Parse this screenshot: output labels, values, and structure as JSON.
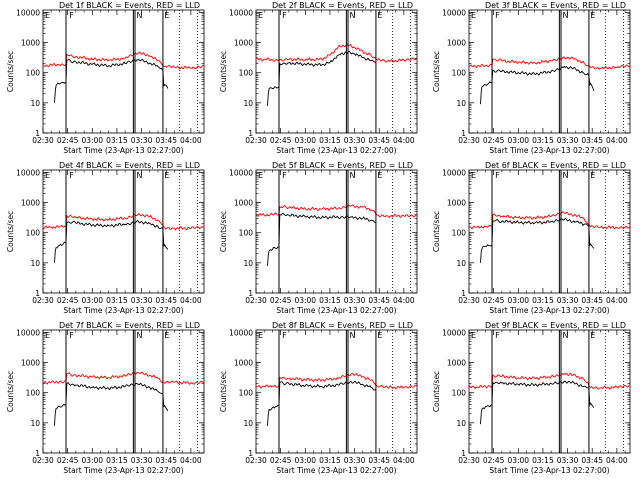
{
  "page": {
    "colors": {
      "events": "#000000",
      "lld": "#ff0000",
      "axes": "#000000",
      "background": "#ffffff"
    }
  },
  "axes_common": {
    "ylabel": "Counts/sec",
    "xlabel": "Start Time (23-Apr-13 02:27:00)",
    "x_tick_labels": [
      "02:30",
      "02:45",
      "03:00",
      "03:15",
      "03:30",
      "03:45",
      "04:00"
    ],
    "x_tick_minutes": [
      30,
      45,
      60,
      75,
      90,
      105,
      120
    ],
    "y_tick_labels": [
      "1",
      "10",
      "100",
      "1000",
      "10000"
    ],
    "y_tick_values": [
      1,
      10,
      100,
      1000,
      10000
    ],
    "xlim_minutes": [
      30,
      128
    ],
    "ylim": [
      1,
      12000
    ],
    "yscale": "log",
    "grid": false,
    "legend": "none"
  },
  "chart_data": [
    {
      "type": "line",
      "title": "Det 1f BLACK = Events, RED = LLD",
      "markers": {
        "solid": [
          44,
          85,
          86,
          103
        ],
        "dotted": [
          113,
          124
        ],
        "F": 45,
        "N": 86,
        "E": 103
      },
      "series": [
        {
          "color": "#000000",
          "x": [
            37,
            37.5,
            38,
            39,
            40,
            41,
            42,
            43,
            44,
            44.5,
            50,
            60,
            70,
            80,
            88,
            95,
            100,
            102,
            103,
            103.5,
            104,
            105,
            106
          ],
          "y": [
            10,
            25,
            38,
            45,
            42,
            46,
            48,
            45,
            50,
            260,
            230,
            190,
            170,
            200,
            270,
            210,
            160,
            140,
            120,
            35,
            40,
            38,
            30
          ]
        },
        {
          "color": "#ff0000",
          "x": [
            30,
            35,
            40,
            44,
            44.5,
            50,
            60,
            70,
            80,
            88,
            95,
            100,
            103,
            104,
            110,
            120,
            128
          ],
          "y": [
            170,
            180,
            185,
            195,
            400,
            340,
            280,
            260,
            300,
            450,
            360,
            250,
            170,
            160,
            150,
            145,
            160
          ]
        }
      ]
    },
    {
      "type": "line",
      "title": "Det 2f BLACK = Events, RED = LLD",
      "markers": {
        "solid": [
          44,
          85,
          86,
          103
        ],
        "dotted": [
          113,
          124
        ],
        "F": 45,
        "N": 86,
        "E": 103
      },
      "series": [
        {
          "color": "#000000",
          "x": [
            37,
            37.5,
            38,
            39,
            40,
            42,
            44,
            44.5,
            50,
            60,
            70,
            75,
            80,
            85,
            90,
            95,
            100,
            103
          ],
          "y": [
            8,
            20,
            30,
            32,
            30,
            34,
            35,
            200,
            210,
            190,
            180,
            220,
            380,
            480,
            420,
            320,
            250,
            210
          ]
        },
        {
          "color": "#ff0000",
          "x": [
            30,
            35,
            40,
            44,
            44.5,
            50,
            60,
            70,
            75,
            80,
            85,
            90,
            95,
            100,
            103,
            104,
            110,
            120,
            128
          ],
          "y": [
            280,
            280,
            270,
            260,
            270,
            280,
            270,
            280,
            380,
            700,
            850,
            700,
            500,
            370,
            290,
            260,
            240,
            260,
            280
          ]
        }
      ]
    },
    {
      "type": "line",
      "title": "Det 3f BLACK = Events, RED = LLD",
      "markers": {
        "solid": [
          44,
          85,
          86,
          103
        ],
        "dotted": [
          113,
          124
        ],
        "F": 45,
        "N": 86,
        "E": 103
      },
      "series": [
        {
          "color": "#000000",
          "x": [
            37,
            37.5,
            38,
            40,
            42,
            44,
            44.5,
            50,
            60,
            70,
            80,
            88,
            95,
            100,
            103,
            103.5,
            104,
            105,
            106
          ],
          "y": [
            9,
            25,
            35,
            40,
            45,
            50,
            120,
            110,
            100,
            90,
            110,
            160,
            130,
            95,
            80,
            40,
            45,
            35,
            25
          ]
        },
        {
          "color": "#ff0000",
          "x": [
            30,
            35,
            40,
            44,
            44.5,
            50,
            60,
            70,
            80,
            88,
            95,
            100,
            103,
            104,
            110,
            120,
            128
          ],
          "y": [
            160,
            165,
            170,
            175,
            280,
            250,
            220,
            210,
            250,
            330,
            280,
            210,
            170,
            150,
            140,
            150,
            165
          ]
        }
      ]
    },
    {
      "type": "line",
      "title": "Det 4f BLACK = Events, RED = LLD",
      "markers": {
        "solid": [
          44,
          85,
          86,
          103
        ],
        "dotted": [
          113,
          124
        ],
        "F": 45,
        "N": 86,
        "E": 103
      },
      "series": [
        {
          "color": "#000000",
          "x": [
            37,
            37.5,
            38,
            40,
            42,
            44,
            44.5,
            50,
            60,
            70,
            80,
            88,
            95,
            100,
            103,
            103.5,
            104,
            105,
            106
          ],
          "y": [
            10,
            25,
            32,
            38,
            40,
            45,
            220,
            210,
            180,
            170,
            190,
            240,
            200,
            160,
            140,
            35,
            40,
            32,
            28
          ]
        },
        {
          "color": "#ff0000",
          "x": [
            30,
            35,
            40,
            44,
            44.5,
            50,
            60,
            70,
            80,
            88,
            95,
            100,
            103,
            104,
            110,
            120,
            128
          ],
          "y": [
            150,
            150,
            155,
            160,
            360,
            320,
            280,
            270,
            310,
            420,
            340,
            260,
            170,
            150,
            140,
            140,
            150
          ]
        }
      ]
    },
    {
      "type": "line",
      "title": "Det 5f BLACK = Events, RED = LLD",
      "markers": {
        "solid": [
          44,
          85,
          86,
          103
        ],
        "dotted": [
          113,
          124
        ],
        "F": 45,
        "N": 86,
        "E": 103
      },
      "series": [
        {
          "color": "#000000",
          "x": [
            37,
            37.5,
            38,
            40,
            42,
            44,
            44.5,
            50,
            60,
            70,
            80,
            88,
            95,
            100,
            103
          ],
          "y": [
            8,
            18,
            25,
            28,
            30,
            32,
            400,
            380,
            340,
            320,
            330,
            330,
            300,
            260,
            220
          ]
        },
        {
          "color": "#ff0000",
          "x": [
            30,
            35,
            40,
            44,
            44.5,
            50,
            60,
            70,
            80,
            88,
            95,
            100,
            103,
            104,
            110,
            120,
            128
          ],
          "y": [
            390,
            390,
            395,
            400,
            720,
            680,
            620,
            600,
            650,
            780,
            700,
            580,
            420,
            380,
            360,
            360,
            380
          ]
        }
      ]
    },
    {
      "type": "line",
      "title": "Det 6f BLACK = Events, RED = LLD",
      "markers": {
        "solid": [
          44,
          85,
          86,
          103
        ],
        "dotted": [
          113,
          124
        ],
        "F": 45,
        "N": 86,
        "E": 103
      },
      "series": [
        {
          "color": "#000000",
          "x": [
            37,
            37.5,
            38,
            40,
            42,
            44,
            44.5,
            50,
            60,
            70,
            80,
            88,
            95,
            100,
            103,
            103.5,
            104,
            105,
            106
          ],
          "y": [
            10,
            25,
            30,
            35,
            38,
            40,
            250,
            240,
            220,
            210,
            230,
            270,
            230,
            190,
            160,
            38,
            42,
            35,
            30
          ]
        },
        {
          "color": "#ff0000",
          "x": [
            30,
            35,
            40,
            44,
            44.5,
            50,
            60,
            70,
            80,
            88,
            95,
            100,
            103,
            104,
            110,
            120,
            128
          ],
          "y": [
            150,
            155,
            160,
            165,
            380,
            350,
            320,
            310,
            350,
            450,
            380,
            290,
            180,
            160,
            150,
            150,
            160
          ]
        }
      ]
    },
    {
      "type": "line",
      "title": "Det 7f BLACK = Events, RED = LLD",
      "markers": {
        "solid": [
          44,
          85,
          86,
          103
        ],
        "dotted": [
          113,
          124
        ],
        "F": 45,
        "N": 86,
        "E": 103
      },
      "series": [
        {
          "color": "#000000",
          "x": [
            37,
            37.5,
            38,
            40,
            42,
            44,
            44.5,
            50,
            60,
            70,
            80,
            88,
            95,
            100,
            103,
            103.5,
            104,
            105,
            106
          ],
          "y": [
            8,
            22,
            30,
            35,
            38,
            42,
            200,
            180,
            150,
            140,
            160,
            190,
            150,
            110,
            90,
            35,
            38,
            30,
            25
          ]
        },
        {
          "color": "#ff0000",
          "x": [
            30,
            35,
            40,
            44,
            44.5,
            50,
            60,
            70,
            80,
            88,
            95,
            100,
            103,
            104,
            110,
            120,
            128
          ],
          "y": [
            220,
            220,
            230,
            240,
            420,
            380,
            330,
            320,
            360,
            460,
            380,
            300,
            230,
            210,
            220,
            210,
            230
          ]
        }
      ]
    },
    {
      "type": "line",
      "title": "Det 8f BLACK = Events, RED = LLD",
      "markers": {
        "solid": [
          44,
          85,
          86,
          103
        ],
        "dotted": [
          113,
          124
        ],
        "F": 45,
        "N": 86,
        "E": 103
      },
      "series": [
        {
          "color": "#000000",
          "x": [
            37,
            37.5,
            38,
            40,
            42,
            44,
            44.5,
            50,
            60,
            70,
            80,
            88,
            95,
            100,
            103
          ],
          "y": [
            8,
            20,
            28,
            32,
            35,
            38,
            220,
            200,
            170,
            160,
            180,
            230,
            190,
            150,
            130
          ]
        },
        {
          "color": "#ff0000",
          "x": [
            30,
            35,
            40,
            44,
            44.5,
            50,
            60,
            70,
            80,
            88,
            95,
            100,
            103,
            104,
            110,
            120,
            128
          ],
          "y": [
            160,
            160,
            165,
            170,
            320,
            300,
            270,
            260,
            300,
            420,
            340,
            260,
            180,
            160,
            150,
            150,
            160
          ]
        }
      ]
    },
    {
      "type": "line",
      "title": "Det 9f BLACK = Events, RED = LLD",
      "markers": {
        "solid": [
          44,
          85,
          86,
          103
        ],
        "dotted": [
          113,
          124
        ],
        "F": 45,
        "N": 86,
        "E": 103
      },
      "series": [
        {
          "color": "#000000",
          "x": [
            37,
            37.5,
            38,
            40,
            42,
            44,
            44.5,
            50,
            60,
            70,
            80,
            88,
            95,
            100,
            103,
            103.5,
            104,
            105,
            106
          ],
          "y": [
            9,
            22,
            30,
            34,
            36,
            40,
            220,
            210,
            190,
            180,
            200,
            240,
            200,
            160,
            140,
            40,
            45,
            38,
            32
          ]
        },
        {
          "color": "#ff0000",
          "x": [
            30,
            35,
            40,
            44,
            44.5,
            50,
            60,
            70,
            80,
            88,
            95,
            100,
            103,
            104,
            110,
            120,
            128
          ],
          "y": [
            150,
            155,
            160,
            165,
            380,
            350,
            310,
            300,
            340,
            430,
            360,
            280,
            170,
            150,
            145,
            150,
            160
          ]
        }
      ]
    }
  ]
}
